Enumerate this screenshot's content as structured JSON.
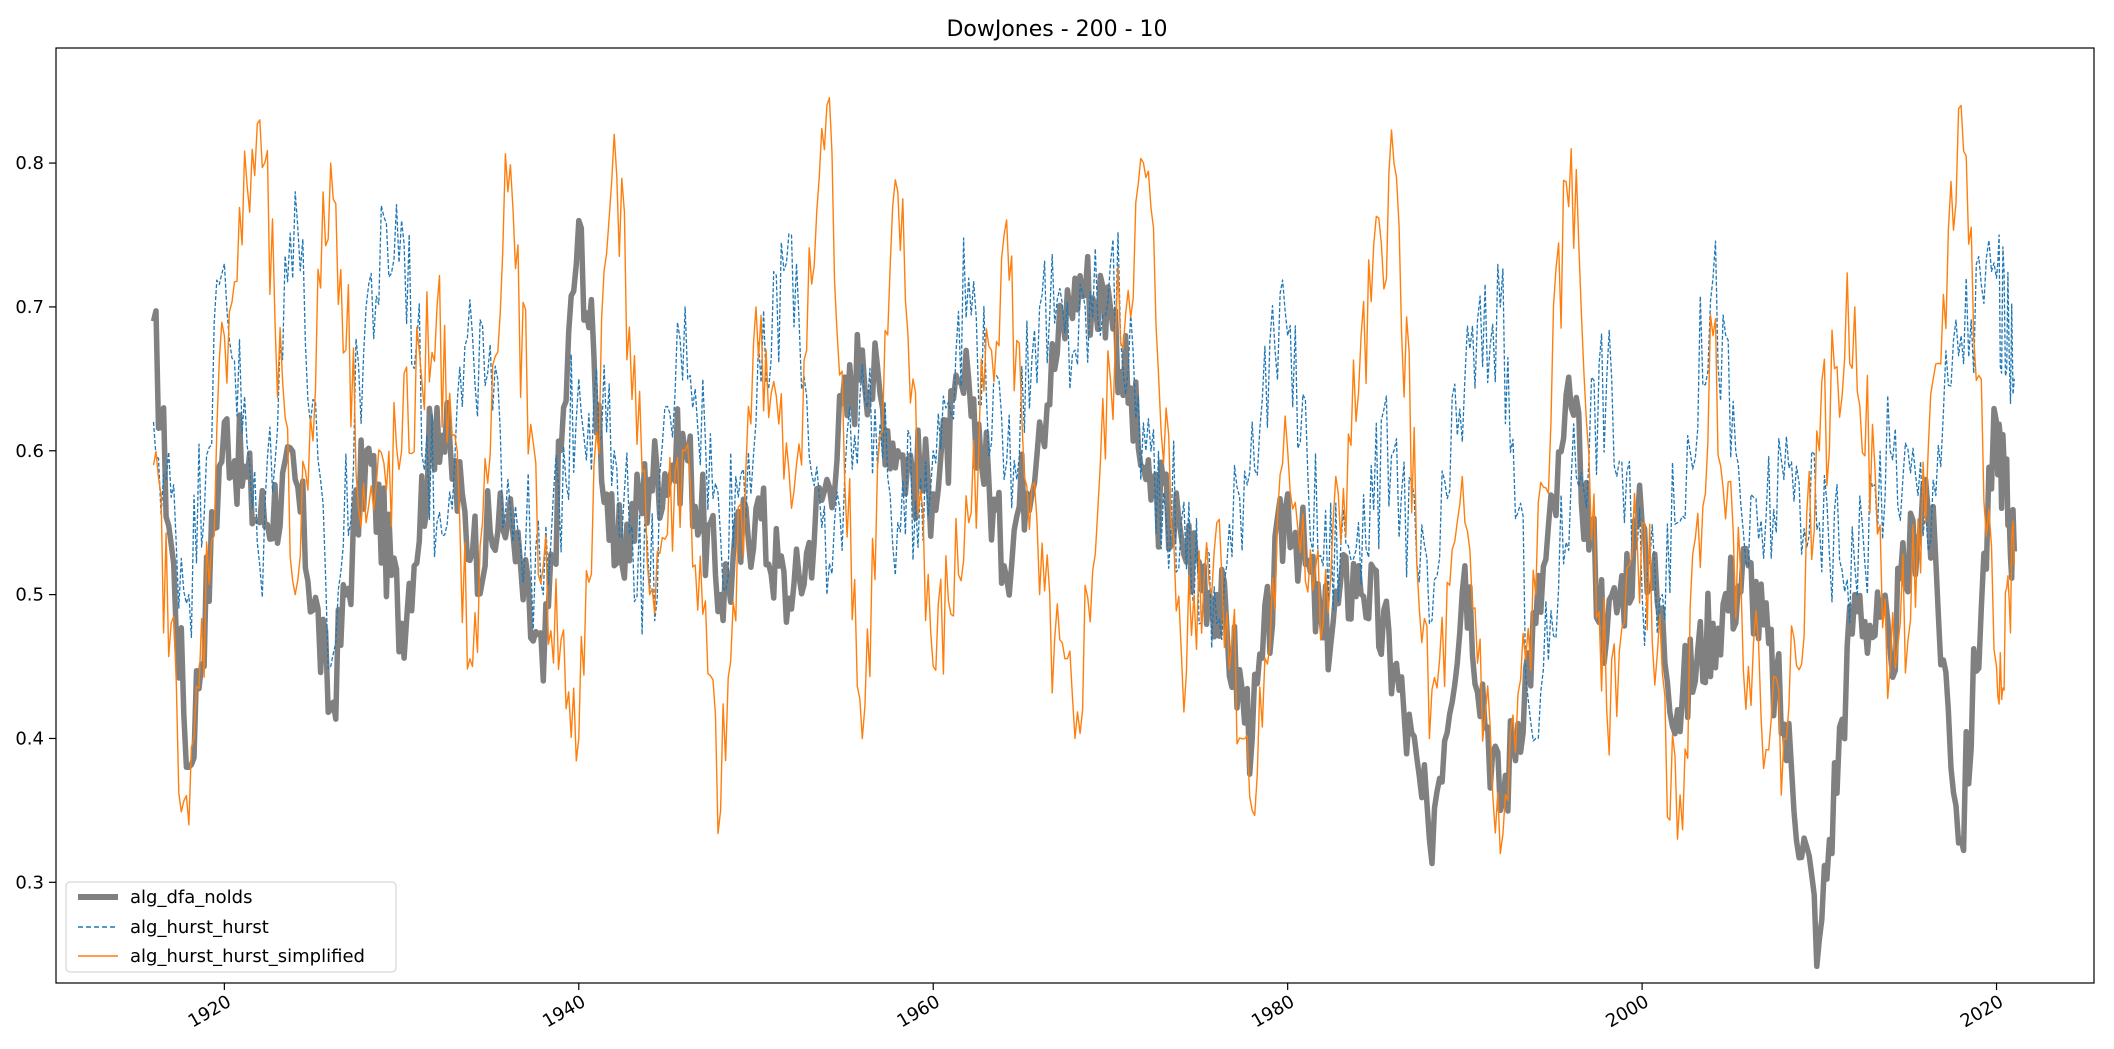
{
  "chart_data": {
    "type": "line",
    "title": "DowJones - 200 - 10",
    "xlabel": "",
    "ylabel": "",
    "xlim": [
      1910.5,
      2025.5
    ],
    "ylim": [
      0.23,
      0.88
    ],
    "x_ticks": [
      1920,
      1940,
      1960,
      1980,
      2000,
      2020
    ],
    "x_tick_labels": [
      "1920",
      "1940",
      "1960",
      "1980",
      "2000",
      "2020"
    ],
    "y_ticks": [
      0.3,
      0.4,
      0.5,
      0.6,
      0.7,
      0.8
    ],
    "y_tick_labels": [
      "0.3",
      "0.4",
      "0.5",
      "0.6",
      "0.7",
      "0.8"
    ],
    "grid": false,
    "legend_position": "lower-left",
    "x": [
      1916,
      1918,
      1920,
      1922,
      1924,
      1926,
      1928,
      1930,
      1932,
      1934,
      1936,
      1938,
      1940,
      1942,
      1944,
      1946,
      1948,
      1950,
      1952,
      1954,
      1956,
      1958,
      1960,
      1962,
      1964,
      1966,
      1968,
      1970,
      1972,
      1974,
      1976,
      1978,
      1980,
      1982,
      1984,
      1986,
      1988,
      1990,
      1992,
      1994,
      1996,
      1998,
      2000,
      2002,
      2004,
      2006,
      2008,
      2010,
      2012,
      2014,
      2016,
      2018,
      2020,
      2021
    ],
    "series": [
      {
        "name": "alg_dfa_nolds",
        "color": "#808080",
        "style": "solid-thick",
        "values": [
          0.69,
          0.38,
          0.62,
          0.55,
          0.58,
          0.42,
          0.6,
          0.48,
          0.63,
          0.53,
          0.55,
          0.44,
          0.76,
          0.52,
          0.58,
          0.6,
          0.5,
          0.56,
          0.49,
          0.58,
          0.67,
          0.6,
          0.57,
          0.65,
          0.52,
          0.62,
          0.72,
          0.7,
          0.58,
          0.54,
          0.5,
          0.4,
          0.57,
          0.47,
          0.52,
          0.45,
          0.33,
          0.52,
          0.35,
          0.48,
          0.63,
          0.47,
          0.55,
          0.42,
          0.48,
          0.52,
          0.41,
          0.26,
          0.5,
          0.46,
          0.58,
          0.33,
          0.62,
          0.53
        ]
      },
      {
        "name": "alg_hurst_hurst",
        "color": "#1f77b4",
        "style": "dashed",
        "values": [
          0.62,
          0.5,
          0.73,
          0.52,
          0.78,
          0.45,
          0.7,
          0.76,
          0.55,
          0.68,
          0.58,
          0.5,
          0.65,
          0.6,
          0.5,
          0.7,
          0.54,
          0.62,
          0.75,
          0.5,
          0.66,
          0.55,
          0.6,
          0.72,
          0.58,
          0.7,
          0.67,
          0.73,
          0.6,
          0.55,
          0.48,
          0.62,
          0.68,
          0.52,
          0.55,
          0.6,
          0.48,
          0.65,
          0.7,
          0.4,
          0.58,
          0.65,
          0.5,
          0.55,
          0.72,
          0.52,
          0.58,
          0.55,
          0.52,
          0.6,
          0.56,
          0.68,
          0.72,
          0.65
        ]
      },
      {
        "name": "alg_hurst_hurst_simplified",
        "color": "#ff7f0e",
        "style": "solid-thin",
        "values": [
          0.59,
          0.34,
          0.68,
          0.83,
          0.5,
          0.8,
          0.55,
          0.6,
          0.7,
          0.45,
          0.78,
          0.52,
          0.4,
          0.82,
          0.5,
          0.6,
          0.35,
          0.7,
          0.56,
          0.84,
          0.4,
          0.78,
          0.45,
          0.55,
          0.75,
          0.5,
          0.4,
          0.65,
          0.79,
          0.46,
          0.55,
          0.35,
          0.6,
          0.48,
          0.64,
          0.8,
          0.4,
          0.55,
          0.32,
          0.5,
          0.81,
          0.42,
          0.55,
          0.33,
          0.68,
          0.45,
          0.4,
          0.6,
          0.7,
          0.45,
          0.55,
          0.84,
          0.45,
          0.52
        ]
      }
    ]
  }
}
